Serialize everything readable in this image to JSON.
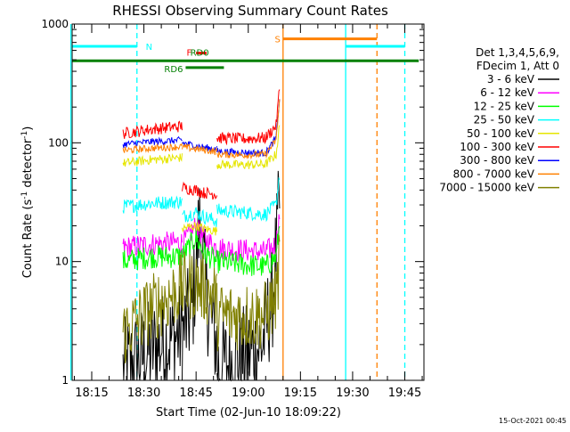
{
  "footer_date": "15-Oct-2021 00:45",
  "colors": {
    "background": "#ffffff",
    "axes": "#000000",
    "det_3_6": "#000000",
    "det_6_12": "#ff00ff",
    "det_12_25": "#00ff00",
    "det_25_50": "#00ffff",
    "det_50_100": "#e6e600",
    "det_100_300": "#ff0000",
    "det_300_800": "#0000ff",
    "det_800_7000": "#ff8000",
    "det_7000_15000": "#808000",
    "flag_N": "#00ffff",
    "flag_S": "#ff8000",
    "flag_RD": "#008000",
    "flag_F": "#ff0000"
  },
  "chart_data": {
    "type": "line",
    "title": "RHESSI Observing Summary Count Rates",
    "xlabel": "Start Time (02-Jun-10 18:09:22)",
    "ylabel": "Count Rate (s⁻¹ detector⁻¹)",
    "ylabel_parts": {
      "main": "Count Rate (s",
      "sup1": "-1",
      "mid": " detector",
      "sup2": "-1",
      "end": ")"
    },
    "y_scale": "log",
    "ylim": [
      1,
      1000
    ],
    "xlim_minutes_after_18": [
      9.37,
      50.5
    ],
    "x_ticks": [
      "18:15",
      "18:30",
      "18:45",
      "19:00",
      "19:15",
      "19:30",
      "19:45"
    ],
    "y_ticks": [
      "1",
      "10",
      "100",
      "1000"
    ],
    "legend": {
      "placement": "right",
      "header": [
        "Det 1,3,4,5,6,9,",
        "FDecim 1, Att 0"
      ],
      "entries": [
        {
          "name": "3 - 6 keV",
          "color": "#000000"
        },
        {
          "name": "6 - 12 keV",
          "color": "#ff00ff"
        },
        {
          "name": "12 - 25 keV",
          "color": "#00ff00"
        },
        {
          "name": "25 - 50 keV",
          "color": "#00ffff"
        },
        {
          "name": "50 - 100 keV",
          "color": "#e6e600"
        },
        {
          "name": "100 - 300 keV",
          "color": "#ff0000"
        },
        {
          "name": "300 - 800 keV",
          "color": "#0000ff"
        },
        {
          "name": "800 - 7000 keV",
          "color": "#ff8000"
        },
        {
          "name": "7000 - 15000 keV",
          "color": "#808000"
        }
      ]
    },
    "flags": [
      {
        "label": "N",
        "color": "#00ffff",
        "level": 650,
        "intervals": [
          [
            "18:09",
            "18:28"
          ],
          [
            "19:28",
            "19:45"
          ]
        ]
      },
      {
        "label": "S",
        "color": "#ff8000",
        "level": 750,
        "intervals": [
          [
            "19:10",
            "19:37"
          ]
        ]
      },
      {
        "label": "F",
        "color": "#ff0000",
        "level": 570,
        "intervals": [
          [
            "18:45",
            "18:48"
          ]
        ]
      },
      {
        "label": "RD0",
        "color": "#008000",
        "level": 490,
        "intervals": [
          [
            "18:09",
            "19:49"
          ]
        ]
      },
      {
        "label": "RD6",
        "color": "#008000",
        "level": 430,
        "intervals": [
          [
            "18:42",
            "18:53"
          ]
        ]
      }
    ],
    "vertical_lines": [
      {
        "time": "18:09",
        "color": "#00ffff",
        "style": "solid"
      },
      {
        "time": "18:28",
        "color": "#00ffff",
        "style": "dashed"
      },
      {
        "time": "19:10",
        "color": "#ff8000",
        "style": "solid"
      },
      {
        "time": "19:28",
        "color": "#00ffff",
        "style": "solid"
      },
      {
        "time": "19:37",
        "color": "#ff8000",
        "style": "dashed"
      },
      {
        "time": "19:45",
        "color": "#00ffff",
        "style": "dashed"
      }
    ],
    "series": [
      {
        "name": "3 - 6 keV",
        "color": "#000000",
        "noise": 0.45,
        "segments": [
          {
            "x": [
              "18:24",
              "18:32",
              "18:41"
            ],
            "y": [
              1.2,
              1.8,
              2.5
            ]
          },
          {
            "x": [
              "18:41",
              "18:44",
              "18:46",
              "18:48",
              "18:51"
            ],
            "y": [
              2.4,
              4.0,
              22,
              5.0,
              2.0
            ]
          },
          {
            "x": [
              "18:51",
              "18:58",
              "19:04",
              "19:07",
              "19:09"
            ],
            "y": [
              1.3,
              1.5,
              2.0,
              5.0,
              30
            ]
          }
        ]
      },
      {
        "name": "6 - 12 keV",
        "color": "#ff00ff",
        "noise": 0.1,
        "segments": [
          {
            "x": [
              "18:24",
              "18:32",
              "18:41"
            ],
            "y": [
              13,
              14,
              14.5
            ]
          },
          {
            "x": [
              "18:41",
              "18:45",
              "18:47",
              "18:51"
            ],
            "y": [
              14,
              20,
              16,
              13
            ]
          },
          {
            "x": [
              "18:51",
              "18:58",
              "19:05",
              "19:08",
              "19:09"
            ],
            "y": [
              13,
              12.5,
              12,
              14,
              25
            ]
          }
        ]
      },
      {
        "name": "12 - 25 keV",
        "color": "#00ff00",
        "noise": 0.1,
        "segments": [
          {
            "x": [
              "18:24",
              "18:32",
              "18:41"
            ],
            "y": [
              10,
              11,
              11
            ]
          },
          {
            "x": [
              "18:41",
              "18:45",
              "18:47",
              "18:51"
            ],
            "y": [
              11,
              16,
              12,
              10
            ]
          },
          {
            "x": [
              "18:51",
              "18:58",
              "19:05",
              "19:08",
              "19:09"
            ],
            "y": [
              10,
              9.5,
              9,
              11,
              20
            ]
          }
        ]
      },
      {
        "name": "25 - 50 keV",
        "color": "#00ffff",
        "noise": 0.06,
        "segments": [
          {
            "x": [
              "18:24",
              "18:32",
              "18:41"
            ],
            "y": [
              29,
              31,
              32
            ]
          },
          {
            "x": [
              "18:41",
              "18:45",
              "18:47",
              "18:51"
            ],
            "y": [
              24,
              26,
              24,
              22
            ]
          },
          {
            "x": [
              "18:51",
              "18:58",
              "19:05",
              "19:08",
              "19:09"
            ],
            "y": [
              27,
              26,
              25,
              30,
              55
            ]
          }
        ]
      },
      {
        "name": "50 - 100 keV",
        "color": "#e6e600",
        "noise": 0.04,
        "segments": [
          {
            "x": [
              "18:24",
              "18:32",
              "18:41"
            ],
            "y": [
              67,
              72,
              75
            ]
          },
          {
            "x": [
              "18:41",
              "18:45",
              "18:47",
              "18:51"
            ],
            "y": [
              19,
              20,
              19,
              18
            ]
          },
          {
            "x": [
              "18:51",
              "18:58",
              "19:05",
              "19:08",
              "19:09"
            ],
            "y": [
              66,
              65,
              66,
              80,
              140
            ]
          }
        ]
      },
      {
        "name": "100 - 300 keV",
        "color": "#ff0000",
        "noise": 0.05,
        "segments": [
          {
            "x": [
              "18:24",
              "18:32",
              "18:41"
            ],
            "y": [
              120,
              130,
              138
            ]
          },
          {
            "x": [
              "18:41",
              "18:45",
              "18:47",
              "18:51"
            ],
            "y": [
              42,
              40,
              38,
              37
            ]
          },
          {
            "x": [
              "18:51",
              "18:58",
              "19:05",
              "19:08",
              "19:09"
            ],
            "y": [
              110,
              108,
              110,
              140,
              290
            ]
          }
        ]
      },
      {
        "name": "300 - 800 keV",
        "color": "#0000ff",
        "noise": 0.03,
        "segments": [
          {
            "x": [
              "18:24",
              "18:32",
              "18:41"
            ],
            "y": [
              97,
              102,
              105
            ]
          },
          {
            "x": [
              "18:41",
              "18:46",
              "18:51"
            ],
            "y": [
              100,
              93,
              88
            ]
          },
          {
            "x": [
              "18:51",
              "18:58",
              "19:05",
              "19:08",
              "19:09"
            ],
            "y": [
              85,
              83,
              82,
              110,
              240
            ]
          }
        ]
      },
      {
        "name": "800 - 7000 keV",
        "color": "#ff8000",
        "noise": 0.03,
        "segments": [
          {
            "x": [
              "18:24",
              "18:32",
              "18:41"
            ],
            "y": [
              86,
              90,
              93
            ]
          },
          {
            "x": [
              "18:41",
              "18:46",
              "18:51"
            ],
            "y": [
              92,
              88,
              84
            ]
          },
          {
            "x": [
              "18:51",
              "18:58",
              "19:05",
              "19:08",
              "19:09"
            ],
            "y": [
              80,
              79,
              80,
              105,
              230
            ]
          }
        ]
      },
      {
        "name": "7000 - 15000 keV",
        "color": "#808000",
        "noise": 0.3,
        "segments": [
          {
            "x": [
              "18:24",
              "18:32",
              "18:41"
            ],
            "y": [
              2.5,
              4.0,
              6.0
            ]
          },
          {
            "x": [
              "18:41",
              "18:45",
              "18:51"
            ],
            "y": [
              6.0,
              6.5,
              5.0
            ]
          },
          {
            "x": [
              "18:51",
              "18:58",
              "19:05",
              "19:08",
              "19:09"
            ],
            "y": [
              3.5,
              3.5,
              3.5,
              5.0,
              10
            ]
          }
        ]
      }
    ]
  }
}
